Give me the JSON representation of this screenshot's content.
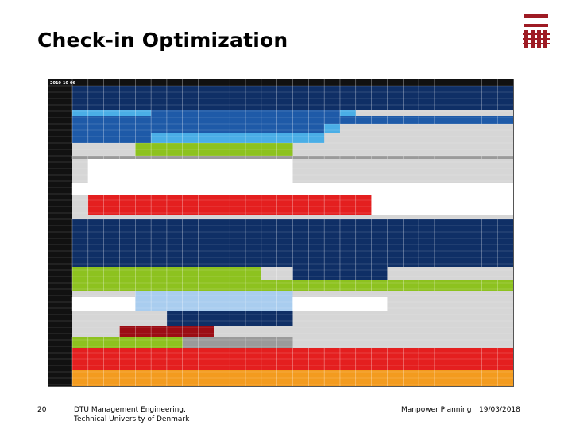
{
  "slide": {
    "title": "Check-in Optimization",
    "page_number": "20",
    "institution_line1": "DTU Management Engineering,",
    "institution_line2": "Technical University of Denmark",
    "topic": "Manpower Planning",
    "date": "19/03/2018",
    "logo_text": "DTU"
  },
  "schedule": {
    "date_label": "2010-10-06",
    "colors": {
      "navy": "#0f2f66",
      "blue": "#1e5aa8",
      "cyan": "#4aaee6",
      "light_blue": "#a9cdef",
      "green": "#8dc21f",
      "red": "#e41f1f",
      "dark_red": "#9c0d14",
      "orange": "#f39b1e",
      "gray": "#9a9a9a",
      "light_gray": "#d6d6d6",
      "black": "#111111",
      "white": "#ffffff"
    }
  }
}
